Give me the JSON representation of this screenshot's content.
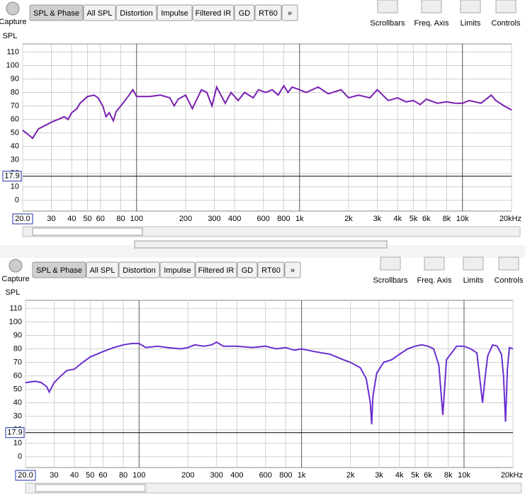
{
  "panels": [
    {
      "capture": "Capture",
      "tabs": [
        "SPL & Phase",
        "All SPL",
        "Distortion",
        "Impulse",
        "Filtered IR",
        "GD",
        "RT60",
        "»"
      ],
      "buttons": [
        "Scrollbars",
        "Freq. Axis",
        "Limits",
        "Controls"
      ]
    },
    {
      "capture": "Capture",
      "tabs": [
        "SPL & Phase",
        "All SPL",
        "Distortion",
        "Impulse",
        "Filtered IR",
        "GD",
        "RT60",
        "»"
      ],
      "buttons": [
        "Scrollbars",
        "Freq. Axis",
        "Limits",
        "Controls"
      ]
    }
  ],
  "chart_data": [
    {
      "type": "line",
      "ylabel": "SPL",
      "xscale": "log",
      "grid": true,
      "xlim": [
        20,
        20000
      ],
      "ylim": [
        -8,
        116
      ],
      "xticks": [
        {
          "value": 20,
          "label": "20.0"
        },
        30,
        40,
        50,
        60,
        80,
        100,
        200,
        300,
        400,
        600,
        800,
        {
          "value": 1000,
          "label": "1k"
        },
        {
          "value": 2000,
          "label": "2k"
        },
        {
          "value": 3000,
          "label": "3k"
        },
        {
          "value": 4000,
          "label": "4k"
        },
        {
          "value": 5000,
          "label": "5k"
        },
        {
          "value": 6000,
          "label": "6k"
        },
        {
          "value": 8000,
          "label": "8k"
        },
        {
          "value": 10000,
          "label": "10k"
        },
        {
          "value": 20000,
          "label": "20kHz"
        }
      ],
      "yticks": [
        0,
        10,
        20,
        30,
        40,
        50,
        60,
        70,
        80,
        90,
        100,
        110
      ],
      "marker": {
        "value": 17.9,
        "label": "17.9"
      },
      "x": [
        20,
        22,
        23,
        25,
        28,
        30,
        33,
        36,
        38,
        40,
        43,
        45,
        50,
        55,
        58,
        62,
        65,
        68,
        72,
        75,
        80,
        90,
        95,
        100,
        120,
        140,
        160,
        170,
        180,
        200,
        220,
        250,
        270,
        290,
        310,
        350,
        380,
        420,
        460,
        520,
        560,
        620,
        680,
        740,
        800,
        850,
        900,
        1000,
        1100,
        1300,
        1500,
        1800,
        2000,
        2300,
        2700,
        3000,
        3500,
        4000,
        4500,
        5000,
        5500,
        6000,
        7000,
        8000,
        9000,
        10000,
        11000,
        13000,
        15000,
        16000,
        18000,
        20000
      ],
      "series": [
        {
          "color": "#7a1fb0",
          "values": [
            52,
            48,
            46,
            53,
            56,
            58,
            60,
            62,
            60,
            65,
            68,
            72,
            77,
            78,
            76,
            70,
            62,
            65,
            59,
            66,
            70,
            78,
            82,
            77,
            77,
            78,
            76,
            70,
            75,
            78,
            68,
            82,
            80,
            70,
            84,
            72,
            80,
            74,
            80,
            76,
            82,
            80,
            82,
            78,
            85,
            80,
            84,
            82,
            80,
            84,
            79,
            82,
            76,
            78,
            76,
            82,
            74,
            76,
            73,
            74,
            71,
            75,
            72,
            73,
            72,
            72,
            74,
            72,
            78,
            74,
            70,
            67
          ]
        }
      ]
    },
    {
      "type": "line",
      "ylabel": "SPL",
      "xscale": "log",
      "grid": true,
      "xlim": [
        20,
        20000
      ],
      "ylim": [
        -8,
        116
      ],
      "xticks": [
        {
          "value": 20,
          "label": "20.0"
        },
        30,
        40,
        50,
        60,
        80,
        100,
        200,
        300,
        400,
        600,
        800,
        {
          "value": 1000,
          "label": "1k"
        },
        {
          "value": 2000,
          "label": "2k"
        },
        {
          "value": 3000,
          "label": "3k"
        },
        {
          "value": 4000,
          "label": "4k"
        },
        {
          "value": 5000,
          "label": "5k"
        },
        {
          "value": 6000,
          "label": "6k"
        },
        {
          "value": 8000,
          "label": "8k"
        },
        {
          "value": 10000,
          "label": "10k"
        },
        {
          "value": 20000,
          "label": "20kHz"
        }
      ],
      "yticks": [
        0,
        10,
        20,
        30,
        40,
        50,
        60,
        70,
        80,
        90,
        100,
        110
      ],
      "marker": {
        "value": 17.9,
        "label": "17.9"
      },
      "x": [
        20,
        23,
        25,
        27,
        28,
        30,
        33,
        36,
        40,
        45,
        50,
        60,
        70,
        80,
        90,
        100,
        110,
        130,
        150,
        180,
        200,
        220,
        250,
        280,
        300,
        330,
        400,
        500,
        600,
        700,
        800,
        900,
        1000,
        1200,
        1500,
        1800,
        2000,
        2300,
        2500,
        2650,
        2700,
        2750,
        2900,
        3200,
        3600,
        4000,
        4500,
        5000,
        5500,
        6000,
        6500,
        7000,
        7400,
        7800,
        8500,
        9000,
        10000,
        11000,
        12000,
        12500,
        13000,
        13500,
        14000,
        15000,
        16000,
        17000,
        17500,
        18000,
        18500,
        19000,
        20000
      ],
      "series": [
        {
          "color": "#6a2ed0",
          "values": [
            55,
            56,
            55,
            52,
            48,
            55,
            60,
            64,
            65,
            70,
            74,
            78,
            81,
            83,
            84,
            84,
            81,
            82,
            81,
            80,
            81,
            83,
            82,
            83,
            85,
            82,
            82,
            81,
            82,
            80,
            81,
            79,
            80,
            78,
            76,
            72,
            70,
            66,
            58,
            40,
            24,
            45,
            62,
            70,
            72,
            76,
            80,
            82,
            83,
            82,
            80,
            68,
            31,
            72,
            78,
            82,
            82,
            80,
            77,
            58,
            40,
            60,
            75,
            83,
            82,
            76,
            60,
            26,
            65,
            81,
            80
          ]
        }
      ]
    }
  ]
}
